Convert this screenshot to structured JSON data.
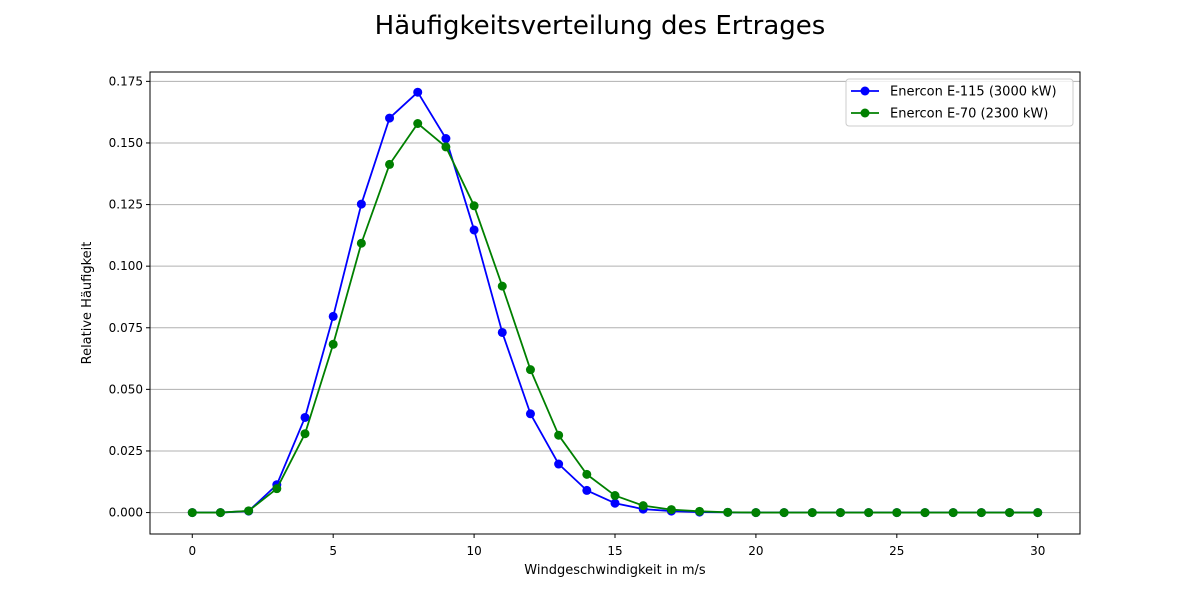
{
  "chart_data": {
    "type": "line",
    "title": "Häufigkeitsverteilung des Ertrages",
    "xlabel": "Windgeschwindigkeit in m/s",
    "ylabel": "Relative Häufigkeit",
    "xlim": [
      -1.5,
      31.5
    ],
    "ylim": [
      -0.0087,
      0.1788
    ],
    "xticks": [
      0,
      5,
      10,
      15,
      20,
      25,
      30
    ],
    "xtick_labels": [
      "0",
      "5",
      "10",
      "15",
      "20",
      "25",
      "30"
    ],
    "yticks": [
      0.0,
      0.025,
      0.05,
      0.075,
      0.1,
      0.125,
      0.15,
      0.175
    ],
    "ytick_labels": [
      "0.000",
      "0.025",
      "0.050",
      "0.075",
      "0.100",
      "0.125",
      "0.150",
      "0.175"
    ],
    "grid": "horizontal",
    "legend_position": "top-right",
    "x": [
      0,
      1,
      2,
      3,
      4,
      5,
      6,
      7,
      8,
      9,
      10,
      11,
      12,
      13,
      14,
      15,
      16,
      17,
      18,
      19,
      20,
      21,
      22,
      23,
      24,
      25,
      26,
      27,
      28,
      29,
      30
    ],
    "series": [
      {
        "name": "Enercon E-115 (3000 kW)",
        "color": "#0000ff",
        "values": [
          0.0,
          0.0,
          0.0006,
          0.0113,
          0.0386,
          0.0796,
          0.1252,
          0.1601,
          0.1706,
          0.1518,
          0.1147,
          0.0731,
          0.0401,
          0.0197,
          0.009,
          0.0038,
          0.0014,
          0.0006,
          0.0002,
          0.0001,
          0.0,
          0.0,
          0.0,
          0.0,
          0.0,
          0.0,
          0.0,
          0.0,
          0.0,
          0.0,
          0.0
        ]
      },
      {
        "name": "Enercon E-70 (2300 kW)",
        "color": "#008000",
        "values": [
          0.0,
          0.0,
          0.0007,
          0.0097,
          0.032,
          0.0683,
          0.1093,
          0.1413,
          0.1579,
          0.1484,
          0.1245,
          0.0919,
          0.058,
          0.0314,
          0.0155,
          0.0069,
          0.0028,
          0.0012,
          0.0005,
          0.0001,
          0.0,
          0.0,
          0.0,
          0.0,
          0.0,
          0.0,
          0.0,
          0.0,
          0.0,
          0.0,
          0.0
        ]
      }
    ]
  }
}
